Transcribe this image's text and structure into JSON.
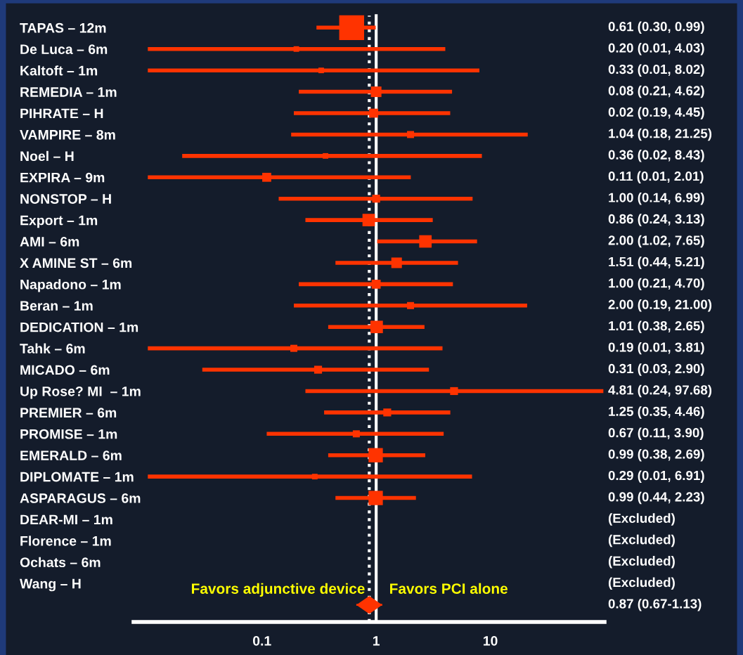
{
  "chart_data": {
    "type": "scatter",
    "orientation": "horizontal",
    "categories": [
      "TAPAS – 12m",
      "De Luca – 6m",
      "Kaltoft – 1m",
      "REMEDIA – 1m",
      "PIHRATE – H",
      "VAMPIRE – 8m",
      "Noel – H",
      "EXPIRA – 9m",
      "NONSTOP – H",
      "Export – 1m",
      "AMI – 6m",
      "X AMINE ST – 6m",
      "Napadono – 1m",
      "Beran – 1m",
      "DEDICATION – 1m",
      "Tahk – 6m",
      "MICADO – 6m",
      "Up Rose? MI  – 1m",
      "PREMIER – 6m",
      "PROMISE – 1m",
      "EMERALD – 6m",
      "DIPLOMATE – 1m",
      "ASPARAGUS – 6m",
      "DEAR-MI – 1m",
      "Florence – 1m",
      "Ochats – 6m",
      "Wang – H",
      null
    ],
    "series": [
      {
        "color": "#ff3300",
        "marker": "square",
        "values": [
          0.61,
          0.2,
          0.33,
          1.0,
          0.95,
          2.0,
          0.36,
          0.11,
          1.0,
          0.86,
          2.7,
          1.51,
          1.0,
          2.0,
          1.01,
          0.19,
          0.31,
          4.81,
          1.25,
          0.67,
          0.99,
          0.29,
          0.99,
          null,
          null,
          null,
          null,
          null
        ],
        "errors": [
          [
            0.3,
            0.99
          ],
          [
            0.01,
            4.03
          ],
          [
            0.01,
            8.02
          ],
          [
            0.21,
            4.62
          ],
          [
            0.19,
            4.45
          ],
          [
            0.18,
            21.25
          ],
          [
            0.02,
            8.43
          ],
          [
            0.01,
            2.01
          ],
          [
            0.14,
            6.99
          ],
          [
            0.24,
            3.13
          ],
          [
            1.02,
            7.65
          ],
          [
            0.44,
            5.21
          ],
          [
            0.21,
            4.7
          ],
          [
            0.19,
            21.0
          ],
          [
            0.38,
            2.65
          ],
          [
            0.01,
            3.81
          ],
          [
            0.03,
            2.9
          ],
          [
            0.24,
            97.68
          ],
          [
            0.35,
            4.46
          ],
          [
            0.11,
            3.9
          ],
          [
            0.38,
            2.69
          ],
          [
            0.01,
            6.91
          ],
          [
            0.44,
            2.23
          ],
          null,
          null,
          null,
          null,
          null
        ],
        "sizes": [
          1,
          0.05,
          0.05,
          0.18,
          0.13,
          0.08,
          0.05,
          0.13,
          0.1,
          0.25,
          0.25,
          0.18,
          0.13,
          0.08,
          0.25,
          0.08,
          0.1,
          0.1,
          0.1,
          0.08,
          0.33,
          0.05,
          0.33,
          null,
          null,
          null,
          null,
          null
        ]
      },
      {
        "color": "#ff3300",
        "marker": "diamond",
        "values": [
          null,
          null,
          null,
          null,
          null,
          null,
          null,
          null,
          null,
          null,
          null,
          null,
          null,
          null,
          null,
          null,
          null,
          null,
          null,
          null,
          null,
          null,
          null,
          null,
          null,
          null,
          null,
          0.87
        ],
        "errors": [
          null,
          null,
          null,
          null,
          null,
          null,
          null,
          null,
          null,
          null,
          null,
          null,
          null,
          null,
          null,
          null,
          null,
          null,
          null,
          null,
          null,
          null,
          null,
          null,
          null,
          null,
          null,
          [
            0.67,
            1.13
          ]
        ]
      }
    ],
    "log": "x",
    "xlim": [
      0.0075,
      100
    ],
    "xticks": [
      0.1,
      1,
      10
    ],
    "tick_labels": "x",
    "grid": false,
    "legend": false,
    "ref_lines": [
      {
        "axis": "x",
        "value": 1,
        "color": "#ffffff",
        "line_style": "solid"
      },
      {
        "axis": "x",
        "value": 0.87,
        "color": "#ffffff",
        "line_style": "dotted"
      }
    ],
    "annotations": [
      "Favors adjunctive device",
      "Favors PCI alone",
      "0.61 (0.30, 0.99)",
      "0.20 (0.01, 4.03)",
      "0.33 (0.01, 8.02)",
      "0.08 (0.21, 4.62)",
      "0.02 (0.19, 4.45)",
      "1.04 (0.18, 21.25)",
      "0.36 (0.02, 8.43)",
      "0.11 (0.01, 2.01)",
      "1.00 (0.14, 6.99)",
      "0.86 (0.24, 3.13)",
      "2.00 (1.02, 7.65)",
      "1.51 (0.44, 5.21)",
      "1.00 (0.21, 4.70)",
      "2.00 (0.19, 21.00)",
      "1.01 (0.38, 2.65)",
      "0.19 (0.01, 3.81)",
      "0.31 (0.03, 2.90)",
      "4.81 (0.24, 97.68)",
      "1.25 (0.35, 4.46)",
      "0.67 (0.11, 3.90)",
      "0.99 (0.38, 2.69)",
      "0.29 (0.01, 6.91)",
      "0.99 (0.44, 2.23)",
      "(Excluded)",
      "(Excluded)",
      "(Excluded)",
      "(Excluded)",
      "0.87 (0.67-1.13)"
    ]
  }
}
